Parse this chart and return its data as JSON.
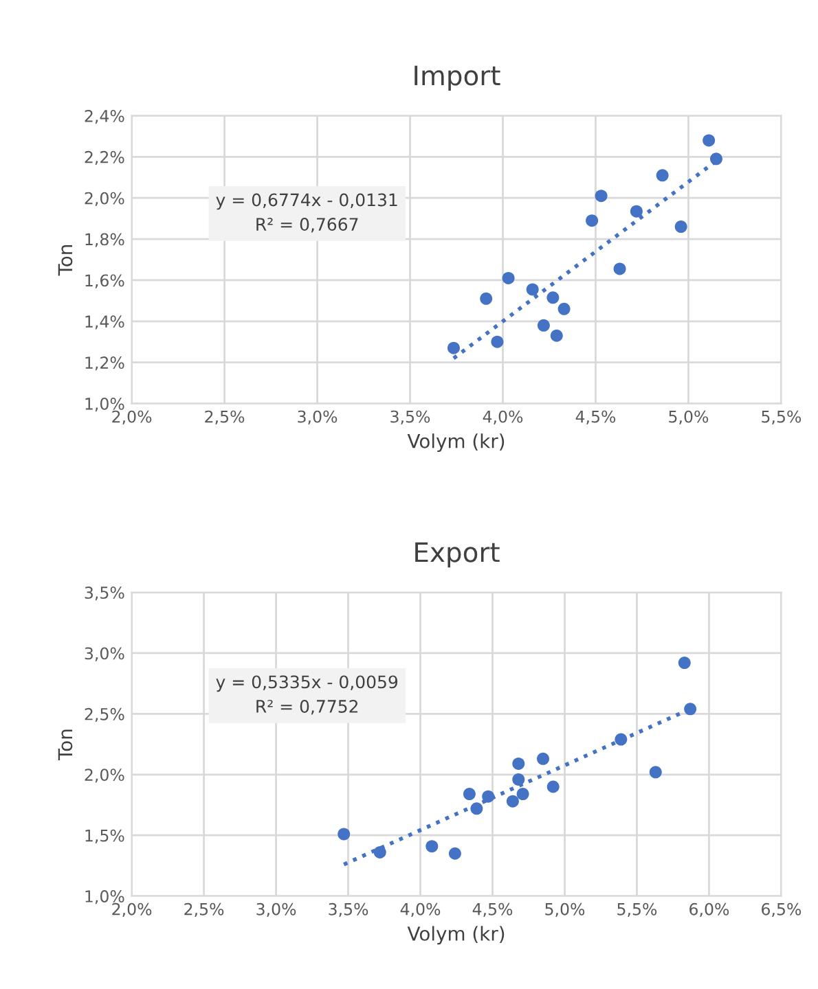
{
  "chart_data": [
    {
      "type": "scatter",
      "title": "Import",
      "xlabel": "Volym (kr)",
      "ylabel": "Ton",
      "grid": true,
      "marker": "circle",
      "xlim": [
        2.0,
        5.5
      ],
      "xticks": [
        {
          "value": 2.0,
          "label": "2,0%"
        },
        {
          "value": 2.5,
          "label": "2,5%"
        },
        {
          "value": 3.0,
          "label": "3,0%"
        },
        {
          "value": 3.5,
          "label": "3,5%"
        },
        {
          "value": 4.0,
          "label": "4,0%"
        },
        {
          "value": 4.5,
          "label": "4,5%"
        },
        {
          "value": 5.0,
          "label": "5,0%"
        },
        {
          "value": 5.5,
          "label": "5,5%"
        }
      ],
      "ylim": [
        1.0,
        2.4
      ],
      "yticks": [
        {
          "value": 1.0,
          "label": "1,0%"
        },
        {
          "value": 1.2,
          "label": "1,2%"
        },
        {
          "value": 1.4,
          "label": "1,4%"
        },
        {
          "value": 1.6,
          "label": "1,6%"
        },
        {
          "value": 1.8,
          "label": "1,8%"
        },
        {
          "value": 2.0,
          "label": "2,0%"
        },
        {
          "value": 2.2,
          "label": "2,2%"
        },
        {
          "value": 2.4,
          "label": "2,4%"
        }
      ],
      "annotations": [
        "y = 0,6774x - 0,0131",
        "R² = 0,7667"
      ],
      "series": [
        {
          "color": "#4472c4",
          "x": [
            3.735,
            3.91,
            4.03,
            3.97,
            4.16,
            4.27,
            4.33,
            4.22,
            4.29,
            4.48,
            4.53,
            4.63,
            4.72,
            4.86,
            4.96,
            5.11,
            5.15
          ],
          "values": [
            1.27,
            1.51,
            1.61,
            1.3,
            1.555,
            1.515,
            1.46,
            1.38,
            1.33,
            1.89,
            2.01,
            1.655,
            1.935,
            2.11,
            1.86,
            2.28,
            2.19
          ]
        },
        {
          "type": "line",
          "color": "#4472c4",
          "line_style": "dotted",
          "marker": "none",
          "x": [
            3.735,
            5.15
          ],
          "values": [
            1.22,
            2.18
          ]
        }
      ]
    },
    {
      "type": "scatter",
      "title": "Export",
      "xlabel": "Volym (kr)",
      "ylabel": "Ton",
      "grid": true,
      "marker": "circle",
      "xlim": [
        2.0,
        6.5
      ],
      "xticks": [
        {
          "value": 2.0,
          "label": "2,0%"
        },
        {
          "value": 2.5,
          "label": "2,5%"
        },
        {
          "value": 3.0,
          "label": "3,0%"
        },
        {
          "value": 3.5,
          "label": "3,5%"
        },
        {
          "value": 4.0,
          "label": "4,0%"
        },
        {
          "value": 4.5,
          "label": "4,5%"
        },
        {
          "value": 5.0,
          "label": "5,0%"
        },
        {
          "value": 5.5,
          "label": "5,5%"
        },
        {
          "value": 6.0,
          "label": "6,0%"
        },
        {
          "value": 6.5,
          "label": "6,5%"
        }
      ],
      "ylim": [
        1.0,
        3.5
      ],
      "yticks": [
        {
          "value": 1.0,
          "label": "1,0%"
        },
        {
          "value": 1.5,
          "label": "1,5%"
        },
        {
          "value": 2.0,
          "label": "2,0%"
        },
        {
          "value": 2.5,
          "label": "2,5%"
        },
        {
          "value": 3.0,
          "label": "3,0%"
        },
        {
          "value": 3.5,
          "label": "3,5%"
        }
      ],
      "annotations": [
        "y = 0,5335x - 0,0059",
        "R² = 0,7752"
      ],
      "series": [
        {
          "color": "#4472c4",
          "x": [
            3.47,
            3.72,
            4.08,
            4.24,
            4.34,
            4.39,
            4.47,
            4.64,
            4.68,
            4.68,
            4.71,
            4.85,
            4.92,
            5.39,
            5.63,
            5.83,
            5.87
          ],
          "values": [
            1.51,
            1.36,
            1.41,
            1.35,
            1.84,
            1.72,
            1.82,
            1.78,
            2.09,
            1.96,
            1.84,
            2.13,
            1.9,
            2.29,
            2.02,
            2.92,
            2.54
          ]
        },
        {
          "type": "line",
          "color": "#4472c4",
          "line_style": "dotted",
          "marker": "none",
          "x": [
            3.47,
            5.87
          ],
          "values": [
            1.26,
            2.54
          ]
        }
      ]
    }
  ]
}
